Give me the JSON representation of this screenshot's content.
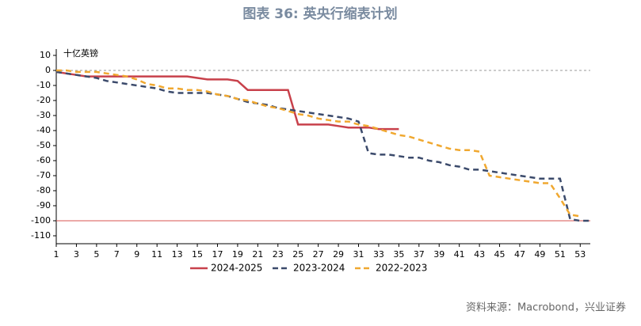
{
  "chart_data": {
    "type": "line",
    "title": "图表 36: 英央行缩表计划",
    "y_label": "十亿英镑",
    "source": "资料来源：Macrobond，兴业证券",
    "xlim": [
      1,
      54
    ],
    "xticks": [
      1,
      3,
      5,
      7,
      9,
      11,
      13,
      15,
      17,
      19,
      21,
      23,
      25,
      27,
      29,
      31,
      33,
      35,
      37,
      39,
      41,
      43,
      45,
      47,
      49,
      51,
      53
    ],
    "ylim": [
      -110,
      10
    ],
    "yticks": [
      10,
      0,
      -10,
      -20,
      -30,
      -40,
      -50,
      -60,
      -70,
      -80,
      -90,
      -100,
      -110
    ],
    "hlines": [
      {
        "value": 0,
        "color": "#999999",
        "dash": true
      },
      {
        "value": -100,
        "color": "#d9534f",
        "dash": false
      }
    ],
    "series": [
      {
        "name": "2024-2025",
        "color": "#c8414b",
        "dash": false,
        "x": [
          1,
          2,
          3,
          4,
          5,
          6,
          7,
          8,
          9,
          10,
          11,
          12,
          13,
          14,
          15,
          16,
          17,
          18,
          19,
          20,
          21,
          22,
          23,
          24,
          25,
          26,
          27,
          28,
          29,
          30,
          31,
          32,
          33,
          34,
          35
        ],
        "values": [
          -1,
          -2,
          -3,
          -4,
          -4,
          -4,
          -4,
          -4,
          -4,
          -4,
          -4,
          -4,
          -4,
          -4,
          -5,
          -6,
          -6,
          -6,
          -7,
          -13,
          -13,
          -13,
          -13,
          -13,
          -36,
          -36,
          -36,
          -36,
          -37,
          -38,
          -38,
          -38,
          -39,
          -39,
          -39
        ]
      },
      {
        "name": "2023-2024",
        "color": "#3b4a6b",
        "dash": true,
        "x": [
          1,
          2,
          3,
          4,
          5,
          6,
          7,
          8,
          9,
          10,
          11,
          12,
          13,
          14,
          15,
          16,
          17,
          18,
          19,
          20,
          21,
          22,
          23,
          24,
          25,
          26,
          27,
          28,
          29,
          30,
          31,
          32,
          33,
          34,
          35,
          36,
          37,
          38,
          39,
          40,
          41,
          42,
          43,
          44,
          45,
          46,
          47,
          48,
          49,
          50,
          51,
          52,
          53,
          54
        ],
        "values": [
          -1,
          -2,
          -3,
          -4,
          -5,
          -7,
          -8,
          -9,
          -10,
          -11,
          -12,
          -14,
          -15,
          -15,
          -15,
          -15,
          -16,
          -17,
          -19,
          -21,
          -22,
          -23,
          -25,
          -26,
          -27,
          -28,
          -29,
          -30,
          -31,
          -32,
          -34,
          -55,
          -56,
          -56,
          -57,
          -58,
          -58,
          -60,
          -61,
          -63,
          -64,
          -66,
          -66,
          -67,
          -68,
          -69,
          -70,
          -71,
          -72,
          -72,
          -72,
          -99,
          -100,
          -100
        ]
      },
      {
        "name": "2022-2023",
        "color": "#f0a830",
        "dash": true,
        "x": [
          1,
          2,
          3,
          4,
          5,
          6,
          7,
          8,
          9,
          10,
          11,
          12,
          13,
          14,
          15,
          16,
          17,
          18,
          19,
          20,
          21,
          22,
          23,
          24,
          25,
          26,
          27,
          28,
          29,
          30,
          31,
          32,
          33,
          34,
          35,
          36,
          37,
          38,
          39,
          40,
          41,
          42,
          43,
          44,
          45,
          46,
          47,
          48,
          49,
          50,
          51,
          52,
          53
        ],
        "values": [
          0,
          0,
          -1,
          -1,
          -1,
          -2,
          -3,
          -4,
          -6,
          -9,
          -10,
          -12,
          -12,
          -13,
          -13,
          -14,
          -16,
          -17,
          -19,
          -20,
          -22,
          -24,
          -25,
          -27,
          -29,
          -30,
          -32,
          -33,
          -34,
          -34,
          -36,
          -37,
          -39,
          -41,
          -43,
          -44,
          -46,
          -48,
          -50,
          -52,
          -53,
          -53,
          -54,
          -70,
          -71,
          -72,
          -73,
          -74,
          -75,
          -75,
          -85,
          -96,
          -97
        ]
      }
    ]
  }
}
